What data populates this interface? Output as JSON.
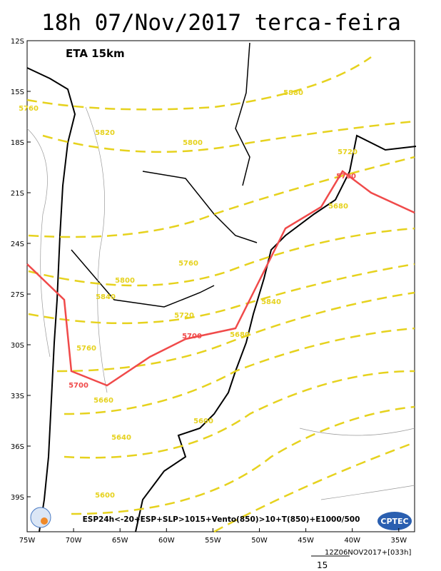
{
  "title": "18h 07/Nov/2017 terca-feira",
  "model_label": "ETA 15km",
  "lat_labels": [
    "12S",
    "15S",
    "18S",
    "21S",
    "24S",
    "27S",
    "30S",
    "33S",
    "36S",
    "39S"
  ],
  "lon_labels": [
    "75W",
    "70W",
    "65W",
    "60W",
    "55W",
    "50W",
    "45W",
    "40W",
    "35W"
  ],
  "contour_labels": [
    "5880",
    "5760",
    "5820",
    "5800",
    "5720",
    "5700",
    "5680",
    "5760",
    "5800",
    "5840",
    "5840",
    "5720",
    "5700",
    "5680",
    "5760",
    "5700",
    "5660",
    "5640",
    "5600",
    "5600"
  ],
  "caption": "ESP24h<-20+ESP+SLP>1015+Vento(850)>10+T(850)+E1000/500",
  "logo_right": "CPTEC",
  "footer": {
    "run": "12Z06NOV2017+[033h]",
    "scale": "15"
  }
}
